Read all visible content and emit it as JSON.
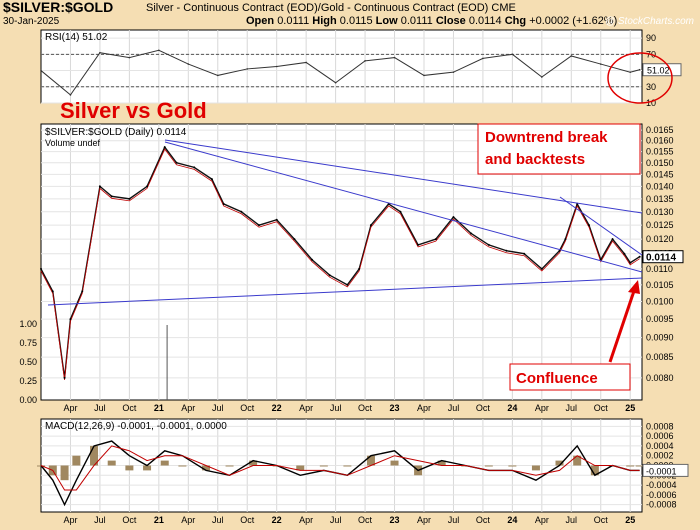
{
  "header": {
    "title": "$SILVER:$GOLD",
    "subtitle": "Silver - Continuous Contract (EOD)/Gold - Continuous Contract (EOD) CME",
    "date": "30-Jan-2025",
    "open_label": "Open",
    "open": "0.0111",
    "high_label": "High",
    "high": "0.0115",
    "low_label": "Low",
    "low": "0.0111",
    "close_label": "Close",
    "close": "0.0114",
    "chg_label": "Chg",
    "chg": "+0.0002 (+1.62%)",
    "credit": "@ StockCharts.com"
  },
  "annotations": {
    "big_title": "Silver vs Gold",
    "downtrend": [
      "Downtrend break",
      "and backtests"
    ],
    "confluence": "Confluence"
  },
  "colors": {
    "accent": "#e00000",
    "trendline": "#3a3acc",
    "background": "#f5deb3"
  },
  "chart_data": [
    {
      "type": "line",
      "title": "RSI(14) 51.02",
      "ylim": [
        10,
        100
      ],
      "y_ticks": [
        10,
        30,
        50,
        70,
        90
      ],
      "last_value_label": "51.02",
      "guide_lines": [
        30,
        70
      ],
      "x_ticks": [
        "Apr",
        "Jul",
        "Oct",
        "21",
        "Apr",
        "Jul",
        "Oct",
        "22",
        "Apr",
        "Jul",
        "Oct",
        "23",
        "Apr",
        "Jul",
        "Oct",
        "24",
        "Apr",
        "Jul",
        "Oct",
        "25"
      ],
      "x": [
        2020.0,
        2020.25,
        2020.5,
        2020.75,
        2021.0,
        2021.25,
        2021.5,
        2021.75,
        2022.0,
        2022.25,
        2022.5,
        2022.75,
        2023.0,
        2023.25,
        2023.5,
        2023.75,
        2024.0,
        2024.25,
        2024.5,
        2024.75,
        2025.0,
        2025.08
      ],
      "values": [
        50,
        20,
        72,
        66,
        75,
        58,
        44,
        52,
        55,
        60,
        35,
        62,
        66,
        44,
        48,
        65,
        70,
        42,
        68,
        58,
        48,
        51.02
      ]
    },
    {
      "type": "line",
      "title": "$SILVER:$GOLD (Daily) 0.0114",
      "secondary_label": "Volume undef",
      "scale": "log",
      "ylim": [
        0.0075,
        0.0168
      ],
      "y_ticks": [
        0.008,
        0.0085,
        0.009,
        0.0095,
        0.01,
        0.0105,
        0.011,
        0.0115,
        0.012,
        0.0125,
        0.013,
        0.0135,
        0.014,
        0.0145,
        0.015,
        0.0155,
        0.016,
        0.0165
      ],
      "y_ticks_left": [
        0,
        0.25,
        0.5,
        0.75,
        1.0
      ],
      "last_value_label": "0.0114",
      "x_ticks": [
        "Apr",
        "Jul",
        "Oct",
        "21",
        "Apr",
        "Jul",
        "Oct",
        "22",
        "Apr",
        "Jul",
        "Oct",
        "23",
        "Apr",
        "Jul",
        "Oct",
        "24",
        "Apr",
        "Jul",
        "Oct",
        "25"
      ],
      "x": [
        2020.0,
        2020.1,
        2020.2,
        2020.25,
        2020.35,
        2020.5,
        2020.6,
        2020.75,
        2020.9,
        2021.05,
        2021.15,
        2021.3,
        2021.45,
        2021.55,
        2021.7,
        2021.85,
        2022.0,
        2022.15,
        2022.3,
        2022.45,
        2022.6,
        2022.7,
        2022.8,
        2022.95,
        2023.05,
        2023.2,
        2023.35,
        2023.5,
        2023.65,
        2023.8,
        2023.95,
        2024.1,
        2024.25,
        2024.4,
        2024.45,
        2024.55,
        2024.65,
        2024.75,
        2024.85,
        2024.95,
        2025.0,
        2025.08
      ],
      "values": [
        0.011,
        0.0103,
        0.008,
        0.0095,
        0.0103,
        0.014,
        0.0136,
        0.0135,
        0.014,
        0.0157,
        0.015,
        0.0148,
        0.0143,
        0.0133,
        0.013,
        0.0125,
        0.0127,
        0.012,
        0.0113,
        0.0108,
        0.0105,
        0.011,
        0.0125,
        0.0133,
        0.013,
        0.0118,
        0.012,
        0.0128,
        0.0122,
        0.0118,
        0.0116,
        0.0115,
        0.011,
        0.0116,
        0.012,
        0.0133,
        0.0125,
        0.0113,
        0.012,
        0.0115,
        0.0112,
        0.0114
      ]
    },
    {
      "type": "line",
      "title": "MACD(12,26,9) -0.0001, -0.0001, 0.0000",
      "ylim": [
        -0.00095,
        0.00095
      ],
      "y_ticks": [
        -0.0008,
        -0.0006,
        -0.0004,
        -0.0002,
        0.0,
        0.0002,
        0.0004,
        0.0006,
        0.0008
      ],
      "last_value_label": "-0.0001",
      "x_ticks": [
        "Apr",
        "Jul",
        "Oct",
        "21",
        "Apr",
        "Jul",
        "Oct",
        "22",
        "Apr",
        "Jul",
        "Oct",
        "23",
        "Apr",
        "Jul",
        "Oct",
        "24",
        "Apr",
        "Jul",
        "Oct",
        "25"
      ],
      "x": [
        2020.0,
        2020.1,
        2020.2,
        2020.3,
        2020.45,
        2020.6,
        2020.75,
        2020.9,
        2021.05,
        2021.2,
        2021.4,
        2021.6,
        2021.8,
        2022.0,
        2022.2,
        2022.4,
        2022.6,
        2022.8,
        2023.0,
        2023.2,
        2023.4,
        2023.6,
        2023.8,
        2024.0,
        2024.2,
        2024.4,
        2024.55,
        2024.7,
        2024.85,
        2025.0,
        2025.08
      ],
      "values": [
        0.0,
        -0.0003,
        -0.0008,
        -0.0003,
        0.0004,
        0.0005,
        0.0002,
        0.0,
        0.0003,
        0.0002,
        -0.0001,
        -0.0002,
        0.0001,
        0.0,
        -0.0002,
        -0.0001,
        -0.0002,
        0.0002,
        0.0003,
        -0.0001,
        0.0001,
        0.0,
        -0.0001,
        -0.0001,
        -0.0003,
        0.0,
        0.0004,
        -0.0002,
        0.0,
        -0.0001,
        -0.0001
      ],
      "signal": [
        0.0,
        -0.0001,
        -0.0005,
        -0.0005,
        0.0,
        0.0004,
        0.0003,
        0.0001,
        0.0002,
        0.0002,
        0.0,
        -0.0002,
        0.0,
        0.0,
        -0.0001,
        -0.0001,
        -0.0002,
        0.0,
        0.0002,
        0.0001,
        0.0,
        0.0,
        -0.0001,
        -0.0001,
        -0.0002,
        -0.0001,
        0.0002,
        0.0,
        0.0,
        -0.0001,
        -0.0001
      ]
    }
  ]
}
